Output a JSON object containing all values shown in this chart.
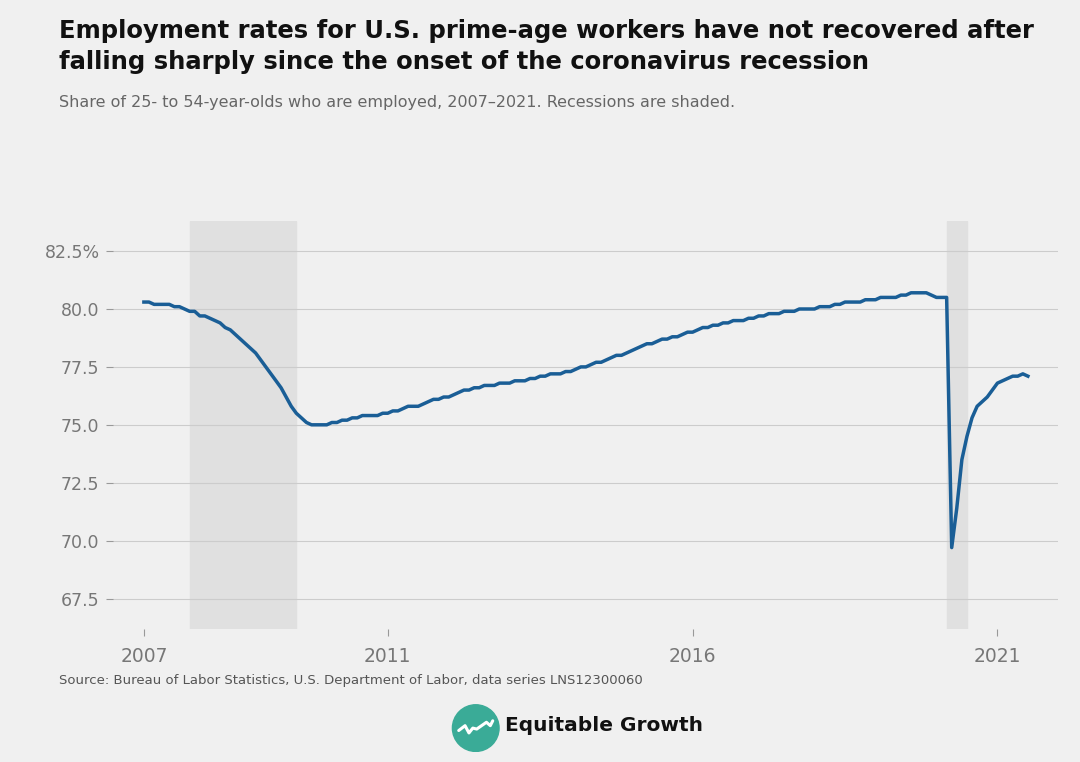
{
  "title_line1": "Employment rates for U.S. prime-age workers have not recovered after",
  "title_line2": "falling sharply since the onset of the coronavirus recession",
  "subtitle": "Share of 25- to 54-year-olds who are employed, 2007–2021. Recessions are shaded.",
  "source": "Source: Bureau of Labor Statistics, U.S. Department of Labor, data series LNS12300060",
  "line_color": "#1a5e96",
  "line_width": 2.5,
  "recession_color": "#e0e0e0",
  "background_color": "#f0f0f0",
  "recessions": [
    {
      "start": 2007.75,
      "end": 2009.5
    },
    {
      "start": 2020.167,
      "end": 2020.5
    }
  ],
  "yticks": [
    67.5,
    70.0,
    72.5,
    75.0,
    77.5,
    80.0,
    82.5
  ],
  "ylim": [
    66.2,
    83.8
  ],
  "xticks": [
    2007,
    2011,
    2016,
    2021
  ],
  "xlim": [
    2006.5,
    2022.0
  ],
  "data": {
    "dates": [
      2007.0,
      2007.083,
      2007.167,
      2007.25,
      2007.333,
      2007.417,
      2007.5,
      2007.583,
      2007.667,
      2007.75,
      2007.833,
      2007.917,
      2008.0,
      2008.083,
      2008.167,
      2008.25,
      2008.333,
      2008.417,
      2008.5,
      2008.583,
      2008.667,
      2008.75,
      2008.833,
      2008.917,
      2009.0,
      2009.083,
      2009.167,
      2009.25,
      2009.333,
      2009.417,
      2009.5,
      2009.583,
      2009.667,
      2009.75,
      2009.833,
      2009.917,
      2010.0,
      2010.083,
      2010.167,
      2010.25,
      2010.333,
      2010.417,
      2010.5,
      2010.583,
      2010.667,
      2010.75,
      2010.833,
      2010.917,
      2011.0,
      2011.083,
      2011.167,
      2011.25,
      2011.333,
      2011.417,
      2011.5,
      2011.583,
      2011.667,
      2011.75,
      2011.833,
      2011.917,
      2012.0,
      2012.083,
      2012.167,
      2012.25,
      2012.333,
      2012.417,
      2012.5,
      2012.583,
      2012.667,
      2012.75,
      2012.833,
      2012.917,
      2013.0,
      2013.083,
      2013.167,
      2013.25,
      2013.333,
      2013.417,
      2013.5,
      2013.583,
      2013.667,
      2013.75,
      2013.833,
      2013.917,
      2014.0,
      2014.083,
      2014.167,
      2014.25,
      2014.333,
      2014.417,
      2014.5,
      2014.583,
      2014.667,
      2014.75,
      2014.833,
      2014.917,
      2015.0,
      2015.083,
      2015.167,
      2015.25,
      2015.333,
      2015.417,
      2015.5,
      2015.583,
      2015.667,
      2015.75,
      2015.833,
      2015.917,
      2016.0,
      2016.083,
      2016.167,
      2016.25,
      2016.333,
      2016.417,
      2016.5,
      2016.583,
      2016.667,
      2016.75,
      2016.833,
      2016.917,
      2017.0,
      2017.083,
      2017.167,
      2017.25,
      2017.333,
      2017.417,
      2017.5,
      2017.583,
      2017.667,
      2017.75,
      2017.833,
      2017.917,
      2018.0,
      2018.083,
      2018.167,
      2018.25,
      2018.333,
      2018.417,
      2018.5,
      2018.583,
      2018.667,
      2018.75,
      2018.833,
      2018.917,
      2019.0,
      2019.083,
      2019.167,
      2019.25,
      2019.333,
      2019.417,
      2019.5,
      2019.583,
      2019.667,
      2019.75,
      2019.833,
      2019.917,
      2020.0,
      2020.083,
      2020.167,
      2020.25,
      2020.333,
      2020.417,
      2020.5,
      2020.583,
      2020.667,
      2020.75,
      2020.833,
      2020.917,
      2021.0,
      2021.083,
      2021.167,
      2021.25,
      2021.333,
      2021.417,
      2021.5
    ],
    "values": [
      80.3,
      80.3,
      80.2,
      80.2,
      80.2,
      80.2,
      80.1,
      80.1,
      80.0,
      79.9,
      79.9,
      79.7,
      79.7,
      79.6,
      79.5,
      79.4,
      79.2,
      79.1,
      78.9,
      78.7,
      78.5,
      78.3,
      78.1,
      77.8,
      77.5,
      77.2,
      76.9,
      76.6,
      76.2,
      75.8,
      75.5,
      75.3,
      75.1,
      75.0,
      75.0,
      75.0,
      75.0,
      75.1,
      75.1,
      75.2,
      75.2,
      75.3,
      75.3,
      75.4,
      75.4,
      75.4,
      75.4,
      75.5,
      75.5,
      75.6,
      75.6,
      75.7,
      75.8,
      75.8,
      75.8,
      75.9,
      76.0,
      76.1,
      76.1,
      76.2,
      76.2,
      76.3,
      76.4,
      76.5,
      76.5,
      76.6,
      76.6,
      76.7,
      76.7,
      76.7,
      76.8,
      76.8,
      76.8,
      76.9,
      76.9,
      76.9,
      77.0,
      77.0,
      77.1,
      77.1,
      77.2,
      77.2,
      77.2,
      77.3,
      77.3,
      77.4,
      77.5,
      77.5,
      77.6,
      77.7,
      77.7,
      77.8,
      77.9,
      78.0,
      78.0,
      78.1,
      78.2,
      78.3,
      78.4,
      78.5,
      78.5,
      78.6,
      78.7,
      78.7,
      78.8,
      78.8,
      78.9,
      79.0,
      79.0,
      79.1,
      79.2,
      79.2,
      79.3,
      79.3,
      79.4,
      79.4,
      79.5,
      79.5,
      79.5,
      79.6,
      79.6,
      79.7,
      79.7,
      79.8,
      79.8,
      79.8,
      79.9,
      79.9,
      79.9,
      80.0,
      80.0,
      80.0,
      80.0,
      80.1,
      80.1,
      80.1,
      80.2,
      80.2,
      80.3,
      80.3,
      80.3,
      80.3,
      80.4,
      80.4,
      80.4,
      80.5,
      80.5,
      80.5,
      80.5,
      80.6,
      80.6,
      80.7,
      80.7,
      80.7,
      80.7,
      80.6,
      80.5,
      80.5,
      80.5,
      69.7,
      71.4,
      73.5,
      74.5,
      75.3,
      75.8,
      76.0,
      76.2,
      76.5,
      76.8,
      76.9,
      77.0,
      77.1,
      77.1,
      77.2,
      77.1
    ]
  }
}
